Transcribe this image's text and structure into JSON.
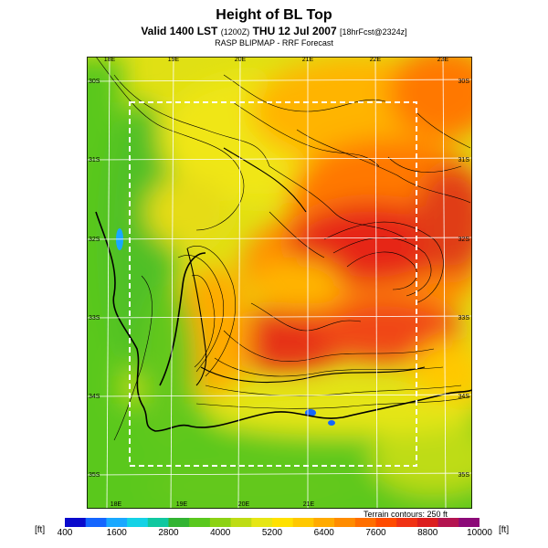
{
  "header": {
    "title": "Height of BL Top",
    "valid_prefix": "Valid 1400 LST",
    "valid_code": "(1200Z)",
    "valid_date": "THU 12 Jul 2007",
    "valid_fcst": "[18hrFcst@2324z]",
    "subtitle": "RASP BLIPMAP - RRF Forecast"
  },
  "map": {
    "lon_ticks_top": [
      "18E",
      "19E",
      "20E",
      "21E",
      "22E",
      "23E"
    ],
    "lon_ticks_bottom": [
      "18E",
      "19E",
      "20E",
      "21E"
    ],
    "lat_ticks_left": [
      "30S",
      "31S",
      "32S",
      "33S",
      "34S",
      "35S"
    ],
    "lat_ticks_right": [
      "30S",
      "31S",
      "32S",
      "33S",
      "34S",
      "35S"
    ],
    "terrain_note": "Terrain contours: 250 ft"
  },
  "colorbar": {
    "unit_left": "[ft]",
    "unit_right": "[ft]",
    "labels": [
      "400",
      "1600",
      "2800",
      "4000",
      "5200",
      "6400",
      "7600",
      "8800",
      "10000"
    ],
    "colors": [
      "#0a0acc",
      "#1466ff",
      "#19a8ff",
      "#14d2e6",
      "#10c8a0",
      "#32b432",
      "#5ac81e",
      "#8cd214",
      "#bedc14",
      "#e6e614",
      "#ffe100",
      "#ffc800",
      "#ffaa00",
      "#ff8c00",
      "#ff6e00",
      "#ff4b00",
      "#f03214",
      "#dc1e1e",
      "#b41450",
      "#8c0a78"
    ]
  }
}
